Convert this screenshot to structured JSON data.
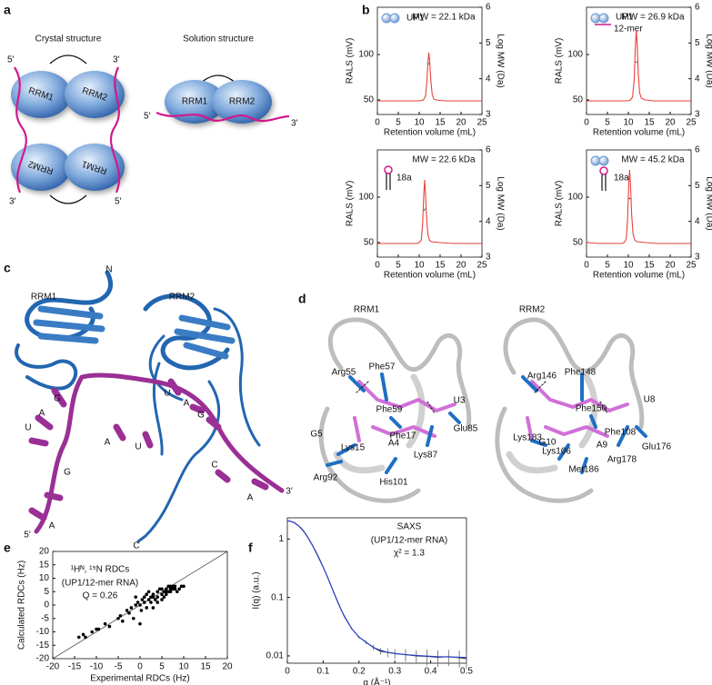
{
  "panel_labels": [
    "a",
    "b",
    "c",
    "d",
    "e",
    "f"
  ],
  "panel_a": {
    "titles": [
      "Crystal structure",
      "Solution structure"
    ],
    "crystal": {
      "domains": [
        "RRM1",
        "RRM2",
        "RRM2",
        "RRM1"
      ],
      "ends": [
        "5′",
        "3′",
        "3′",
        "5′"
      ]
    },
    "solution": {
      "domains": [
        "RRM1",
        "RRM2"
      ],
      "ends": [
        "5′",
        "3′"
      ]
    }
  },
  "panel_c": {
    "domains": [
      "RRM1",
      "RRM2"
    ],
    "termini": [
      "N",
      "C"
    ],
    "rna_ends": [
      "5′",
      "3′"
    ],
    "bound_nucleotides": [
      "G",
      "A",
      "U",
      "U",
      "A",
      "G"
    ],
    "free_nucleotides": [
      "G",
      "A",
      "A",
      "U",
      "C",
      "A"
    ]
  },
  "panel_d": {
    "domains": [
      "RRM1",
      "RRM2"
    ],
    "residues": [
      "Arg55",
      "Phe57",
      "Phe59",
      "Glu85",
      "Phe17",
      "Lys15",
      "Lys87",
      "Arg92",
      "His101",
      "Arg146",
      "Phe148",
      "Phe150",
      "Phe108",
      "Lys183",
      "Glu176",
      "Lys106",
      "Arg178",
      "Met186"
    ],
    "nucleotides": [
      "U3",
      "G5",
      "A4",
      "U8",
      "G10",
      "A9"
    ]
  },
  "chart_data": [
    {
      "type": "line",
      "xlabel": "Retention volume (mL)",
      "ylabel": "RALS (mV)",
      "y2label": "Log MW (Da)",
      "annotations": [
        "MW = 22.1 kDa",
        "UP1"
      ],
      "x": [
        0,
        3,
        6,
        9,
        10,
        11,
        11.5,
        11.8,
        12.1,
        12.3,
        12.5,
        12.8,
        13.1,
        13.5,
        14,
        16,
        19,
        22,
        25
      ],
      "series": [
        {
          "color": "#e8413c",
          "values": [
            49,
            49,
            49,
            49,
            49,
            50,
            54,
            68,
            92,
            102,
            93,
            70,
            56,
            51,
            50,
            49,
            49,
            49,
            49
          ]
        },
        {
          "color": "#555555",
          "axis": "y2",
          "values": [
            null,
            null,
            null,
            null,
            null,
            null,
            null,
            null,
            4.43,
            4.42,
            4.41,
            null,
            null,
            null,
            null,
            null,
            null,
            null,
            null
          ]
        }
      ],
      "xlim": [
        0,
        25
      ],
      "xticks": [
        0,
        5,
        10,
        15,
        20,
        25
      ],
      "ylim": [
        34,
        152
      ],
      "yticks": [
        50,
        100
      ],
      "y2lim": [
        3,
        6
      ],
      "y2ticks": [
        3,
        4,
        5,
        6
      ]
    },
    {
      "type": "line",
      "xlabel": "Retention volume (mL)",
      "ylabel": "RALS (mV)",
      "y2label": "Log MW (Da)",
      "annotations": [
        "MW = 26.9 kDa",
        "UP1",
        "12-mer"
      ],
      "x": [
        0,
        3,
        6,
        9,
        10,
        10.5,
        11,
        11.4,
        11.7,
        11.9,
        12.1,
        12.4,
        12.7,
        13.1,
        14,
        16,
        19,
        22,
        25
      ],
      "series": [
        {
          "color": "#e8413c",
          "values": [
            49,
            49,
            49,
            49,
            49,
            50,
            53,
            72,
            110,
            127,
            112,
            78,
            58,
            52,
            50,
            49,
            49,
            49,
            49
          ]
        },
        {
          "color": "#555555",
          "axis": "y2",
          "values": [
            null,
            null,
            null,
            null,
            null,
            null,
            null,
            null,
            4.46,
            4.47,
            4.46,
            null,
            null,
            null,
            null,
            null,
            null,
            null,
            null
          ]
        }
      ],
      "xlim": [
        0,
        25
      ],
      "xticks": [
        0,
        5,
        10,
        15,
        20,
        25
      ],
      "ylim": [
        34,
        152
      ],
      "yticks": [
        50,
        100
      ],
      "y2lim": [
        3,
        6
      ],
      "y2ticks": [
        3,
        4,
        5,
        6
      ]
    },
    {
      "type": "line",
      "xlabel": "Retention volume (mL)",
      "ylabel": "RALS (mV)",
      "y2label": "Log MW (Da)",
      "annotations": [
        "MW = 22.6 kDa",
        "18a"
      ],
      "x": [
        0,
        3,
        6,
        9,
        9.5,
        10,
        10.5,
        10.8,
        11.1,
        11.3,
        11.5,
        11.8,
        12.1,
        12.5,
        13,
        15,
        18,
        22,
        25
      ],
      "series": [
        {
          "color": "#e8413c",
          "values": [
            49,
            49,
            49,
            49,
            49,
            50,
            53,
            70,
            104,
            119,
            103,
            75,
            58,
            52,
            51,
            50,
            49,
            49,
            49
          ]
        },
        {
          "color": "#555555",
          "axis": "y2",
          "values": [
            null,
            null,
            null,
            null,
            null,
            null,
            null,
            null,
            4.3,
            4.33,
            4.36,
            null,
            null,
            null,
            null,
            null,
            null,
            null,
            null
          ]
        }
      ],
      "xlim": [
        0,
        25
      ],
      "xticks": [
        0,
        5,
        10,
        15,
        20,
        25
      ],
      "ylim": [
        34,
        152
      ],
      "yticks": [
        50,
        100
      ],
      "y2lim": [
        3,
        6
      ],
      "y2ticks": [
        3,
        4,
        5,
        6
      ]
    },
    {
      "type": "line",
      "xlabel": "Retention volume (mL)",
      "ylabel": "RALS (mV)",
      "y2label": "Log MW (Da)",
      "annotations": [
        "MW = 45.2 kDa",
        "18a"
      ],
      "x": [
        0,
        3,
        6,
        8,
        8.5,
        9,
        9.5,
        9.8,
        10.1,
        10.3,
        10.5,
        10.8,
        11.1,
        11.5,
        12,
        14,
        17,
        21,
        25
      ],
      "series": [
        {
          "color": "#e8413c",
          "values": [
            50,
            49,
            49,
            49,
            49,
            50,
            54,
            75,
            115,
            130,
            115,
            80,
            60,
            53,
            51,
            50,
            49,
            49,
            49
          ]
        },
        {
          "color": "#555555",
          "axis": "y2",
          "values": [
            null,
            null,
            null,
            null,
            null,
            null,
            null,
            null,
            4.63,
            4.65,
            4.62,
            null,
            null,
            null,
            null,
            null,
            null,
            null,
            null
          ]
        }
      ],
      "xlim": [
        0,
        25
      ],
      "xticks": [
        0,
        5,
        10,
        15,
        20,
        25
      ],
      "ylim": [
        34,
        152
      ],
      "yticks": [
        50,
        100
      ],
      "y2lim": [
        3,
        6
      ],
      "y2ticks": [
        3,
        4,
        5,
        6
      ]
    },
    {
      "type": "scatter",
      "xlabel": "Experimental RDCs (Hz)",
      "ylabel": "Calculated RDCs (Hz)",
      "annotations": [
        "¹Hᴺ, ¹⁵N RDCs",
        "(UP1/12-mer RNA)",
        "Q = 0.26"
      ],
      "color": "#000000",
      "x": [
        -14,
        -13,
        -12.5,
        -11,
        -10,
        -9.5,
        -8,
        -7,
        -5,
        -4.5,
        -4,
        -3,
        -2.5,
        -2,
        -1.5,
        -1,
        -0.5,
        0,
        0.3,
        0.5,
        1,
        1,
        1.5,
        2,
        2,
        2.5,
        3,
        3,
        3.5,
        4,
        4,
        4.5,
        5,
        5,
        5.5,
        5.5,
        6,
        6,
        6.5,
        6.5,
        7,
        7,
        7.5,
        7.5,
        8,
        8,
        8.5,
        9,
        9.5,
        10,
        0,
        1.5,
        3,
        2.5,
        -1,
        4,
        6,
        7,
        8,
        5
      ],
      "values": [
        -12,
        -11,
        -12,
        -10,
        -9,
        -9,
        -7,
        -8,
        -5,
        -4,
        -6,
        -2,
        -3,
        -1,
        -5,
        0,
        1,
        0,
        -2,
        2,
        1,
        3,
        -1,
        2,
        5,
        1,
        3,
        4,
        2,
        5,
        3,
        6,
        4,
        6,
        5,
        3,
        6,
        5,
        7,
        5,
        6,
        7,
        6,
        7,
        7,
        6,
        5,
        6,
        7,
        7,
        -7,
        4,
        -1,
        3,
        3,
        1,
        4,
        5,
        6,
        2
      ],
      "xlim": [
        -20,
        20
      ],
      "xticks": [
        -20,
        -15,
        -10,
        -5,
        0,
        5,
        10,
        15,
        20
      ],
      "ylim": [
        -20,
        20
      ],
      "yticks": [
        -20,
        -15,
        -10,
        -5,
        0,
        5,
        10,
        15,
        20
      ]
    },
    {
      "type": "line",
      "xlabel": "q (Å⁻¹)",
      "ylabel": "I(q) (a.u.)",
      "log_y": true,
      "annotations": [
        "SAXS",
        "(UP1/12-mer RNA)",
        "χ² = 1.3"
      ],
      "x": [
        0,
        0.01,
        0.02,
        0.03,
        0.04,
        0.05,
        0.06,
        0.07,
        0.08,
        0.09,
        0.1,
        0.11,
        0.12,
        0.13,
        0.14,
        0.15,
        0.16,
        0.18,
        0.2,
        0.22,
        0.24,
        0.26,
        0.28,
        0.3,
        0.33,
        0.36,
        0.39,
        0.42,
        0.45,
        0.48,
        0.5
      ],
      "series": [
        {
          "color": "#333333",
          "values": [
            2.05,
            2.0,
            1.9,
            1.7,
            1.5,
            1.25,
            1.0,
            0.78,
            0.6,
            0.45,
            0.33,
            0.24,
            0.17,
            0.12,
            0.085,
            0.062,
            0.047,
            0.029,
            0.021,
            0.017,
            0.014,
            0.012,
            0.0115,
            0.011,
            0.0105,
            0.01,
            0.0098,
            0.0095,
            0.0097,
            0.0093,
            0.009
          ],
          "errors": [
            0.03,
            0.02,
            0.02,
            0.02,
            0.02,
            0.015,
            0.012,
            0.01,
            0.008,
            0.006,
            0.005,
            0.004,
            0.003,
            0.002,
            0.0015,
            0.0012,
            0.001,
            0.001,
            0.001,
            0.0012,
            0.0015,
            0.0015,
            0.002,
            0.002,
            0.0025,
            0.0025,
            0.003,
            0.003,
            0.003,
            0.003,
            0.003
          ]
        },
        {
          "color": "#2a3fd0",
          "values": [
            2.05,
            2.0,
            1.88,
            1.7,
            1.48,
            1.24,
            1.0,
            0.78,
            0.59,
            0.44,
            0.33,
            0.24,
            0.17,
            0.12,
            0.086,
            0.062,
            0.046,
            0.029,
            0.021,
            0.017,
            0.014,
            0.0125,
            0.0115,
            0.011,
            0.0105,
            0.0102,
            0.0099,
            0.0097,
            0.0096,
            0.0095,
            0.0094
          ]
        }
      ],
      "xlim": [
        0,
        0.5
      ],
      "xticks": [
        0,
        0.1,
        0.2,
        0.3,
        0.4,
        0.5
      ],
      "ylim": [
        0.0075,
        2.3
      ],
      "yticks": [
        0.01,
        0.1,
        1
      ]
    }
  ]
}
